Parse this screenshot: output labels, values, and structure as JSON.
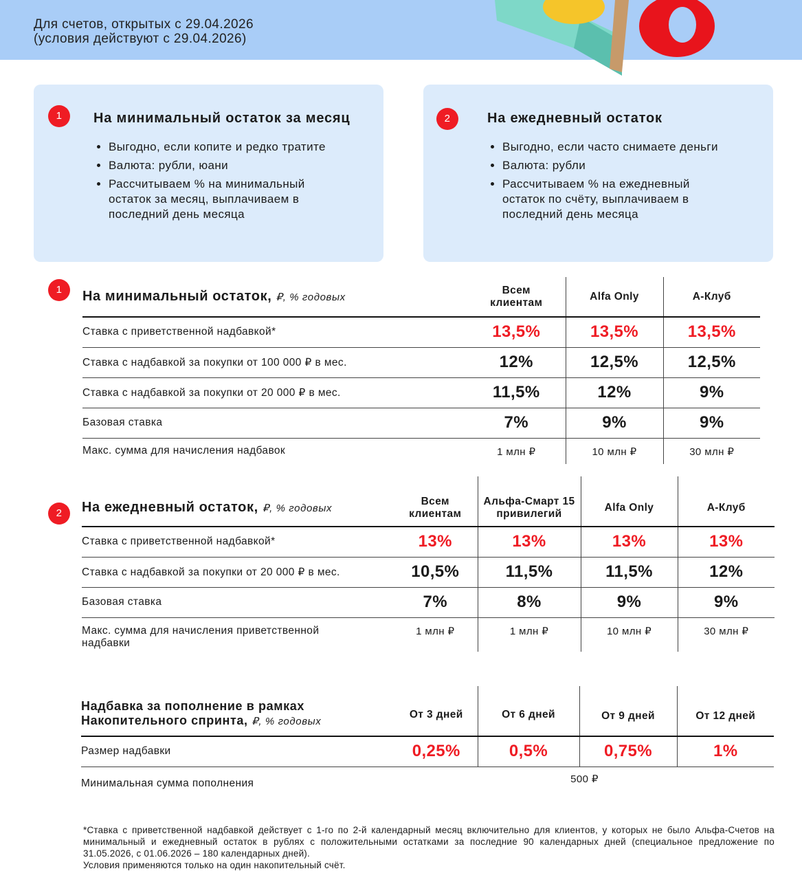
{
  "header": {
    "line1": "Для счетов, открытых с 29.04.2026",
    "line2": "(условия действуют с 29.04.2026)"
  },
  "cards": [
    {
      "badge": "1",
      "title": "На минимальный остаток за месяц",
      "bullets": [
        "Выгодно, если копите и редко тратите",
        "Валюта: рубли, юани",
        "Рассчитываем % на минимальный остаток за месяц, выплачиваем в последний день месяца"
      ]
    },
    {
      "badge": "2",
      "title": "На ежедневный остаток",
      "bullets": [
        "Выгодно, если часто снимаете деньги",
        "Валюта: рубли",
        "Рассчитываем % на ежедневный остаток по счёту, выплачиваем в последний день месяца"
      ]
    }
  ],
  "table1": {
    "badge": "1",
    "title": "На минимальный остаток,",
    "units": "₽, % годовых",
    "columns": [
      "Всем клиентам",
      "Alfa Only",
      "А-Клуб"
    ],
    "rows": [
      {
        "label": "Ставка с приветственной надбавкой*",
        "values": [
          "13,5%",
          "13,5%",
          "13,5%"
        ]
      },
      {
        "label": "Ставка с надбавкой за покупки от 100 000 ₽  в мес.",
        "values": [
          "12%",
          "12,5%",
          "12,5%"
        ]
      },
      {
        "label": "Ставка с надбавкой за покупки от 20 000 ₽  в мес.",
        "values": [
          "11,5%",
          "12%",
          "9%"
        ]
      },
      {
        "label": "Базовая ставка",
        "values": [
          "7%",
          "9%",
          "9%"
        ]
      },
      {
        "label": "Макс. сумма для начисления надбавок",
        "values": [
          "1 млн ₽",
          "10 млн ₽",
          "30 млн ₽"
        ]
      }
    ]
  },
  "table2": {
    "badge": "2",
    "title": "На ежедневный остаток,",
    "units": "₽, % годовых",
    "columns": [
      "Всем клиентам",
      "Альфа-Смарт 15 привилегий",
      "Alfa Only",
      "А-Клуб"
    ],
    "rows": [
      {
        "label": "Ставка с приветственной надбавкой*",
        "values": [
          "13%",
          "13%",
          "13%",
          "13%"
        ]
      },
      {
        "label": "Ставка с надбавкой за покупки от 20 000 ₽  в мес.",
        "values": [
          "10,5%",
          "11,5%",
          "11,5%",
          "12%"
        ]
      },
      {
        "label": "Базовая ставка",
        "values": [
          "7%",
          "8%",
          "9%",
          "9%"
        ]
      },
      {
        "label": "Макс. сумма для начисления приветственной надбавки",
        "values": [
          "1 млн ₽",
          "1 млн ₽",
          "10 млн ₽",
          "30 млн ₽"
        ]
      }
    ]
  },
  "table3": {
    "title": "Надбавка за пополнение в рамках Накопительного спринта,",
    "units": "₽, % годовых",
    "columns": [
      "От 3 дней",
      "От 6 дней",
      "От 9 дней",
      "От 12 дней"
    ],
    "rows": [
      {
        "label": "Размер надбавки",
        "values": [
          "0,25%",
          "0,5%",
          "0,75%",
          "1%"
        ]
      }
    ],
    "minimum": {
      "label": "Минимальная сумма пополнения",
      "value": "500 ₽"
    }
  },
  "footnote": {
    "text": "*Ставка с приветственной надбавкой действует с 1-го по 2-й календарный месяц включительно для клиентов, у которых не было Альфа-Счетов на минимальный и ежедневный остаток в рублях с положительными остатками за последние 90 календарных дней (специальное предложение по 31.05.2026, с 01.06.2026 – 180 календарных дней).",
    "note": "Условия применяются только на один накопительный счёт."
  }
}
